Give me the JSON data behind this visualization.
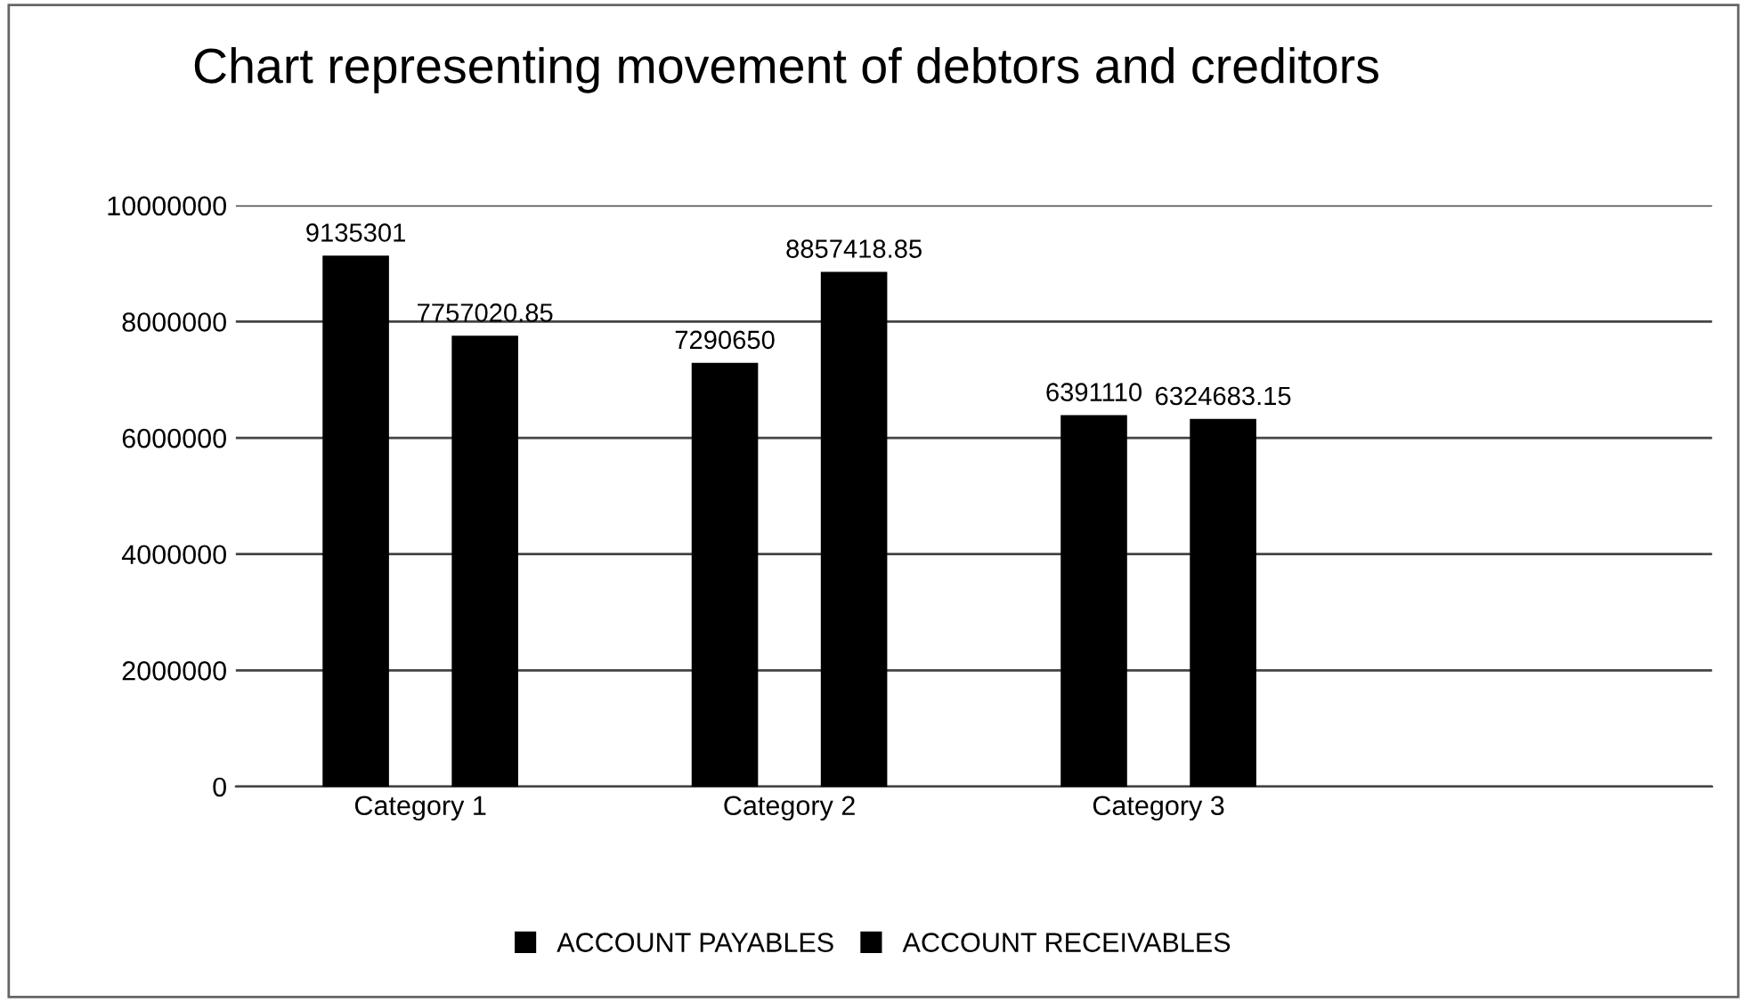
{
  "chart_data": {
    "type": "bar",
    "title": "Chart representing movement of debtors and creditors",
    "categories": [
      "Category 1",
      "Category 2",
      "Category 3"
    ],
    "series": [
      {
        "name": "ACCOUNT PAYABLES",
        "color": "#000000",
        "values": [
          9135301,
          7290650,
          6391110
        ]
      },
      {
        "name": "ACCOUNT RECEIVABLES",
        "color": "#000000",
        "values": [
          7757020.85,
          8857418.85,
          6324683.15
        ]
      }
    ],
    "ylim": [
      0,
      10000000
    ],
    "yticks": [
      0,
      2000000,
      4000000,
      6000000,
      8000000,
      10000000
    ],
    "grid": "y",
    "legend": "bottom",
    "data_labels": true
  }
}
